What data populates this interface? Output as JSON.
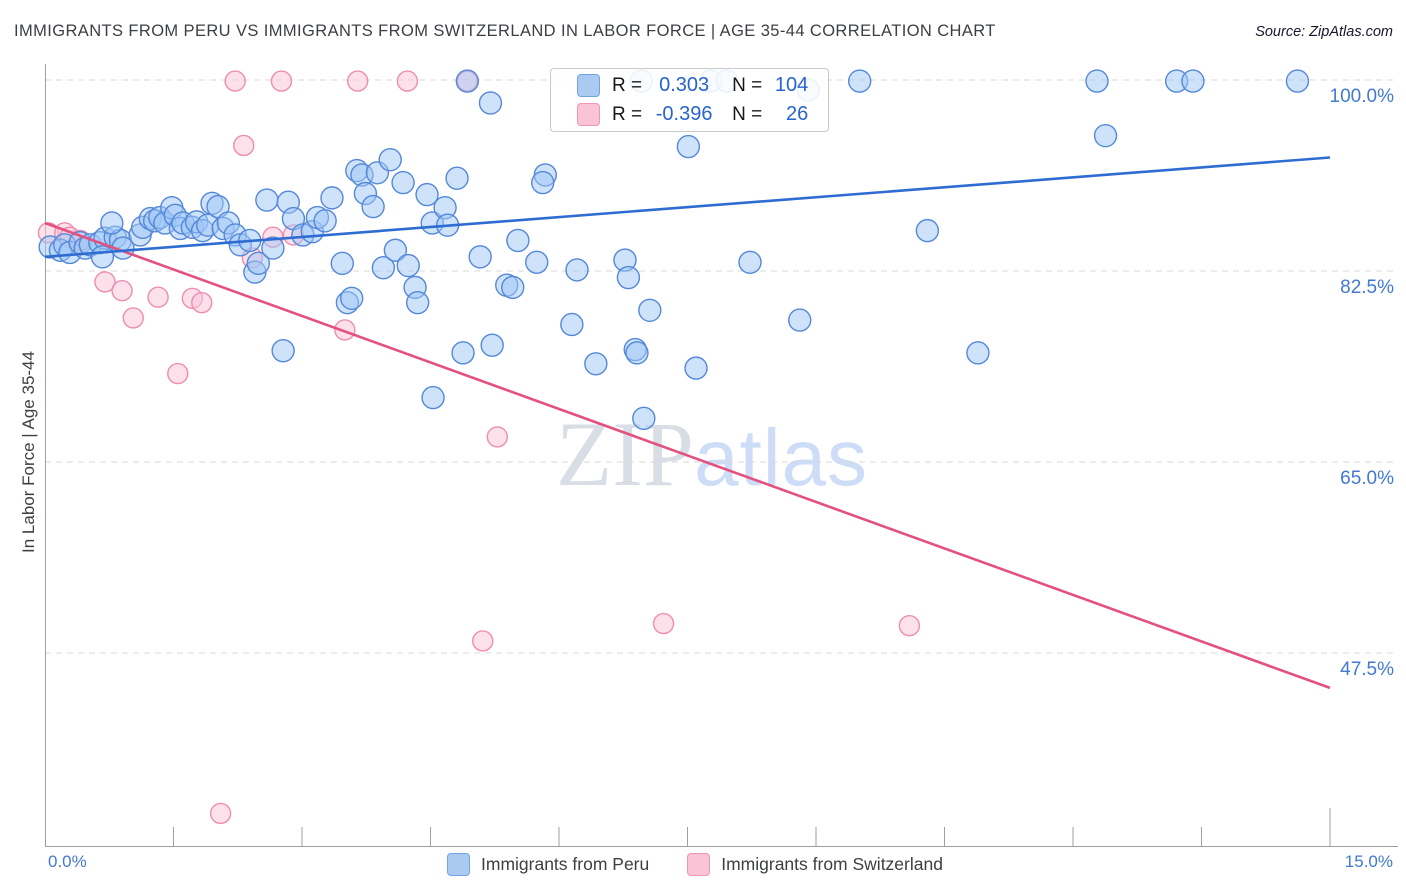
{
  "title": "IMMIGRANTS FROM PERU VS IMMIGRANTS FROM SWITZERLAND IN LABOR FORCE | AGE 35-44 CORRELATION CHART",
  "source": "Source: ZipAtlas.com",
  "watermark": {
    "zip": "ZIP",
    "atlas": "atlas"
  },
  "y_axis": {
    "label": "In Labor Force | Age 35-44",
    "ticks": [
      {
        "label": "100.0%",
        "value": 100.0
      },
      {
        "label": "82.5%",
        "value": 82.5
      },
      {
        "label": "65.0%",
        "value": 65.0
      },
      {
        "label": "47.5%",
        "value": 47.5
      }
    ]
  },
  "x_axis": {
    "min_label": "0.0%",
    "max_label": "15.0%",
    "min": 0,
    "max": 15
  },
  "legend_box": {
    "rows": [
      {
        "series": "peru",
        "r_label": "R =",
        "r_value": "0.303",
        "n_label": "N =",
        "n_value": "104"
      },
      {
        "series": "swiss",
        "r_label": "R =",
        "r_value": "-0.396",
        "n_label": "N =",
        "n_value": "26"
      }
    ]
  },
  "bottom_legend": {
    "peru": "Immigrants from Peru",
    "swiss": "Immigrants from Switzerland"
  },
  "colors": {
    "peru_fill": "rgba(158,198,245,0.5)",
    "peru_stroke": "#5488d8",
    "peru_line": "#2e6cd2",
    "swiss_fill": "rgba(250,198,216,0.55)",
    "swiss_stroke": "#ee8cb1",
    "swiss_line": "#e4517f",
    "grid": "#d8d8d8",
    "axis": "#9aa0a6",
    "tick_label": "#4379d3"
  },
  "chart_data": {
    "type": "scatter",
    "x_unit": "%",
    "y_unit": "%",
    "xlim": [
      0,
      15
    ],
    "grid": "horizontal-dashed",
    "legend_position": "top-center-box and bottom",
    "series": [
      {
        "name": "Immigrants from Peru",
        "R": 0.303,
        "N": 104,
        "points": [
          [
            0.06,
            84.7
          ],
          [
            0.18,
            84.4
          ],
          [
            0.23,
            84.9
          ],
          [
            0.29,
            84.2
          ],
          [
            0.41,
            85.1
          ],
          [
            0.47,
            84.6
          ],
          [
            0.53,
            84.9
          ],
          [
            0.64,
            85.1
          ],
          [
            0.7,
            85.5
          ],
          [
            0.82,
            85.6
          ],
          [
            0.88,
            85.3
          ],
          [
            0.78,
            86.9
          ],
          [
            0.67,
            83.8
          ],
          [
            0.91,
            84.6
          ],
          [
            1.11,
            85.8
          ],
          [
            1.14,
            86.5
          ],
          [
            1.23,
            87.3
          ],
          [
            1.28,
            87.1
          ],
          [
            1.34,
            87.4
          ],
          [
            1.4,
            86.9
          ],
          [
            1.48,
            88.3
          ],
          [
            1.52,
            87.6
          ],
          [
            1.58,
            86.4
          ],
          [
            1.61,
            86.9
          ],
          [
            1.72,
            86.5
          ],
          [
            1.77,
            87.0
          ],
          [
            1.84,
            86.2
          ],
          [
            1.9,
            86.7
          ],
          [
            1.95,
            88.7
          ],
          [
            2.02,
            88.4
          ],
          [
            2.08,
            86.4
          ],
          [
            2.14,
            86.9
          ],
          [
            2.22,
            85.8
          ],
          [
            2.28,
            84.9
          ],
          [
            2.39,
            85.3
          ],
          [
            2.45,
            82.4
          ],
          [
            2.49,
            83.2
          ],
          [
            2.59,
            89.0
          ],
          [
            2.66,
            84.6
          ],
          [
            2.84,
            88.8
          ],
          [
            2.9,
            87.3
          ],
          [
            3.01,
            85.8
          ],
          [
            3.12,
            86.1
          ],
          [
            3.18,
            87.4
          ],
          [
            3.27,
            87.1
          ],
          [
            3.35,
            89.2
          ],
          [
            3.47,
            83.2
          ],
          [
            3.53,
            79.6
          ],
          [
            3.58,
            80.0
          ],
          [
            3.64,
            91.7
          ],
          [
            3.7,
            91.3
          ],
          [
            3.74,
            89.6
          ],
          [
            3.83,
            88.4
          ],
          [
            3.88,
            91.5
          ],
          [
            3.95,
            82.8
          ],
          [
            4.03,
            92.7
          ],
          [
            4.09,
            84.4
          ],
          [
            4.18,
            90.6
          ],
          [
            4.24,
            83.0
          ],
          [
            4.32,
            81.0
          ],
          [
            4.35,
            79.6
          ],
          [
            4.46,
            89.5
          ],
          [
            4.52,
            86.9
          ],
          [
            4.67,
            88.3
          ],
          [
            4.7,
            86.7
          ],
          [
            4.81,
            91.0
          ],
          [
            4.93,
            99.9
          ],
          [
            5.08,
            83.8
          ],
          [
            5.2,
            97.9
          ],
          [
            5.22,
            75.7
          ],
          [
            2.78,
            75.2
          ],
          [
            5.84,
            91.3
          ],
          [
            5.81,
            90.6
          ],
          [
            5.52,
            85.3
          ],
          [
            5.74,
            83.3
          ],
          [
            5.39,
            81.2
          ],
          [
            5.46,
            81.0
          ],
          [
            6.21,
            82.6
          ],
          [
            6.77,
            83.5
          ],
          [
            6.81,
            81.9
          ],
          [
            7.06,
            78.9
          ],
          [
            6.15,
            77.6
          ],
          [
            6.89,
            75.3
          ],
          [
            6.43,
            74.0
          ],
          [
            7.51,
            93.9
          ],
          [
            8.23,
            83.3
          ],
          [
            8.81,
            78.0
          ],
          [
            10.3,
            86.2
          ],
          [
            6.96,
            99.9
          ],
          [
            7.77,
            99.9
          ],
          [
            7.96,
            99.9
          ],
          [
            8.91,
            99.1
          ],
          [
            9.51,
            99.9
          ],
          [
            12.28,
            99.9
          ],
          [
            13.21,
            99.9
          ],
          [
            13.4,
            99.9
          ],
          [
            14.62,
            99.9
          ],
          [
            12.38,
            94.9
          ],
          [
            10.89,
            75.0
          ],
          [
            4.88,
            75.0
          ],
          [
            4.53,
            70.9
          ],
          [
            6.91,
            75.0
          ],
          [
            7.6,
            73.6
          ],
          [
            6.99,
            69.0
          ]
        ]
      },
      {
        "name": "Immigrants from Switzerland",
        "R": -0.396,
        "N": 26,
        "points": [
          [
            0.04,
            86.0
          ],
          [
            0.23,
            86.0
          ],
          [
            0.29,
            85.6
          ],
          [
            0.41,
            85.3
          ],
          [
            0.7,
            81.5
          ],
          [
            0.9,
            80.7
          ],
          [
            1.32,
            80.1
          ],
          [
            1.03,
            78.2
          ],
          [
            1.72,
            80.0
          ],
          [
            1.83,
            79.6
          ],
          [
            2.22,
            99.9
          ],
          [
            2.76,
            99.9
          ],
          [
            3.65,
            99.9
          ],
          [
            4.23,
            99.9
          ],
          [
            4.93,
            99.9
          ],
          [
            2.32,
            94.0
          ],
          [
            2.66,
            85.6
          ],
          [
            2.42,
            83.7
          ],
          [
            2.9,
            85.8
          ],
          [
            3.5,
            77.1
          ],
          [
            1.55,
            73.1
          ],
          [
            5.28,
            67.3
          ],
          [
            5.11,
            48.6
          ],
          [
            7.22,
            50.2
          ],
          [
            10.09,
            50.0
          ],
          [
            2.05,
            32.8
          ]
        ]
      }
    ],
    "trend_lines": [
      {
        "series": "Immigrants from Peru",
        "x": [
          0,
          15
        ],
        "y": [
          83.8,
          92.9
        ]
      },
      {
        "series": "Immigrants from Switzerland",
        "x": [
          0,
          15
        ],
        "y": [
          86.9,
          44.3
        ]
      }
    ]
  }
}
